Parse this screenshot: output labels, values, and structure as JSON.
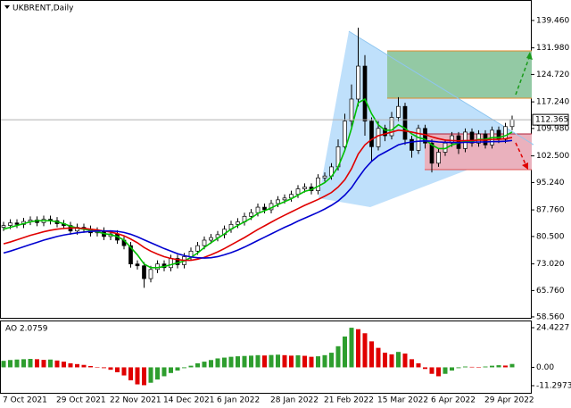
{
  "chart_data": [
    {
      "type": "candlestick",
      "title": "UKBRENT,Daily",
      "categories": [
        null,
        null,
        "7 Oct 2021",
        null,
        null,
        null,
        null,
        null,
        null,
        null,
        "29 Oct 2021",
        null,
        null,
        null,
        null,
        null,
        null,
        null,
        "22 Nov 2021",
        null,
        null,
        null,
        null,
        null,
        null,
        null,
        "14 Dec 2021",
        null,
        null,
        null,
        null,
        null,
        null,
        null,
        "6 Jan 2022",
        null,
        null,
        null,
        null,
        null,
        null,
        null,
        "28 Jan 2022",
        null,
        null,
        null,
        null,
        null,
        null,
        null,
        "21 Feb 2022",
        null,
        null,
        null,
        null,
        null,
        null,
        null,
        "15 Mar 2022",
        null,
        null,
        null,
        null,
        null,
        null,
        null,
        "6 Apr 2022",
        null,
        null,
        null,
        null,
        null,
        null,
        null,
        "29 Apr 2022",
        null,
        null
      ],
      "open": [
        83.0,
        83.5,
        84.2,
        83.8,
        84.6,
        85.0,
        84.3,
        85.2,
        84.8,
        84.0,
        83.5,
        82.0,
        83.0,
        82.5,
        81.5,
        82.0,
        80.5,
        81.2,
        79.5,
        78.0,
        73.0,
        72.5,
        69.0,
        71.5,
        73.0,
        72.0,
        74.5,
        72.8,
        75.0,
        76.5,
        78.0,
        79.5,
        80.2,
        81.0,
        82.5,
        83.8,
        84.5,
        86.0,
        87.0,
        88.5,
        87.8,
        89.5,
        90.5,
        91.0,
        92.0,
        93.5,
        94.0,
        93.0,
        96.5,
        97.0,
        99.5,
        105.0,
        112.0,
        118.0,
        127.0,
        112.0,
        105.0,
        110.0,
        108.0,
        113.0,
        116.0,
        107.0,
        104.0,
        110.0,
        106.0,
        100.5,
        103.5,
        106.0,
        108.0,
        104.5,
        109.0,
        106.0,
        108.5,
        105.5,
        109.5,
        107.0,
        110.5
      ],
      "high": [
        84.5,
        85.2,
        85.2,
        85.6,
        86,
        86,
        86.2,
        86.2,
        85.8,
        85,
        84.5,
        84,
        84,
        83.5,
        83,
        83,
        82.2,
        82.2,
        80.5,
        79,
        74,
        73.5,
        72.5,
        74,
        74,
        75.5,
        75.5,
        76,
        77.5,
        79,
        80.5,
        81.2,
        82,
        83.5,
        84.8,
        85.5,
        87,
        88,
        89.5,
        89.5,
        90.5,
        91.5,
        92,
        93,
        94.5,
        95,
        95,
        97.5,
        98,
        100.5,
        107,
        114,
        122,
        137.5,
        130,
        113,
        112,
        111,
        114.5,
        118.5,
        117,
        108,
        111,
        111,
        107,
        104.5,
        107,
        109,
        109,
        110,
        110,
        109.5,
        109.5,
        110.5,
        110.5,
        111.5,
        113.5
      ],
      "low": [
        82,
        82.5,
        82.8,
        82.8,
        83.6,
        83.3,
        83.3,
        83.8,
        83,
        82.5,
        81,
        81,
        81.5,
        80.5,
        80.5,
        79.5,
        79.5,
        78.5,
        77,
        72,
        71.5,
        66.5,
        68,
        70.5,
        71,
        71,
        71.8,
        71.8,
        74,
        75.5,
        77,
        78.5,
        79.2,
        80,
        81.5,
        82.8,
        83.5,
        85,
        86,
        86.8,
        86.8,
        88.5,
        89.5,
        90,
        91,
        92.5,
        92,
        92,
        95.5,
        96,
        98.5,
        104,
        110,
        116,
        108,
        101,
        104,
        106.5,
        107,
        112,
        105.5,
        102,
        103,
        104.5,
        98,
        99.5,
        102.5,
        105,
        103,
        103.5,
        105,
        105,
        104.5,
        104.5,
        106,
        106,
        109.5
      ],
      "close": [
        83.5,
        84.2,
        83.8,
        84.6,
        85.0,
        84.3,
        85.2,
        84.8,
        84.0,
        83.5,
        82.0,
        83.0,
        82.5,
        81.5,
        82.0,
        80.5,
        81.2,
        79.5,
        78.0,
        73.0,
        72.5,
        69.0,
        71.5,
        73.0,
        72.0,
        74.5,
        72.8,
        75.0,
        76.5,
        78.0,
        79.5,
        80.2,
        81.0,
        82.5,
        83.8,
        84.5,
        86.0,
        87.0,
        88.5,
        87.8,
        89.5,
        90.5,
        91.0,
        92.0,
        93.5,
        94.0,
        93.0,
        96.5,
        97.0,
        99.5,
        105.0,
        112.0,
        118.0,
        127.0,
        112.0,
        105.0,
        110.0,
        108.0,
        113.0,
        116.0,
        107.0,
        104.0,
        110.0,
        106.0,
        100.5,
        103.5,
        106.0,
        108.0,
        104.5,
        109.0,
        106.0,
        108.5,
        105.5,
        109.5,
        107.0,
        110.5,
        112.4
      ],
      "up_color": "#ffffff",
      "down_color": "#000000",
      "series": [
        {
          "color": "#00c000",
          "values": [
            82.5,
            83,
            83.5,
            84,
            84.5,
            84.8,
            84.8,
            84.8,
            84.5,
            84,
            83.3,
            82.8,
            82.5,
            82.2,
            81.8,
            81.3,
            81,
            80.5,
            79.5,
            77.5,
            75.5,
            73,
            72,
            72,
            72.3,
            72.8,
            73.3,
            73.8,
            74.8,
            76,
            77.5,
            78.8,
            80,
            81.2,
            82.5,
            83.5,
            84.5,
            85.5,
            86.8,
            87.5,
            88.3,
            89.2,
            90,
            90.8,
            91.8,
            92.8,
            93.3,
            94.2,
            95.2,
            96.8,
            99.5,
            104,
            110,
            117,
            118,
            114,
            111,
            109.5,
            109.5,
            111,
            110,
            108.5,
            107.5,
            107,
            105.5,
            104.5,
            104.5,
            105.5,
            106,
            106.5,
            106.5,
            107,
            107,
            107.5,
            107.5,
            108,
            109
          ]
        },
        {
          "color": "#e00000",
          "values": [
            78.5,
            79,
            79.6,
            80.2,
            80.8,
            81.3,
            81.8,
            82.2,
            82.5,
            82.7,
            82.8,
            82.8,
            82.7,
            82.5,
            82.3,
            82,
            81.7,
            81.3,
            80.7,
            79.8,
            78.8,
            77.5,
            76.5,
            75.7,
            75,
            74.5,
            74.2,
            74,
            74,
            74.3,
            74.8,
            75.5,
            76.3,
            77.2,
            78.2,
            79.2,
            80.2,
            81.3,
            82.4,
            83.4,
            84.4,
            85.4,
            86.3,
            87.2,
            88.1,
            89,
            89.8,
            90.6,
            91.5,
            92.5,
            94,
            96,
            99,
            103,
            105.5,
            107,
            108,
            108.5,
            109,
            109.5,
            109.3,
            109,
            108.6,
            108.3,
            107.7,
            107.2,
            106.8,
            106.7,
            106.6,
            106.7,
            106.7,
            106.8,
            106.8,
            107,
            107,
            107.2,
            107.5
          ]
        },
        {
          "color": "#0000d0",
          "values": [
            76,
            76.5,
            77.1,
            77.7,
            78.3,
            78.9,
            79.5,
            80,
            80.5,
            80.9,
            81.2,
            81.5,
            81.7,
            81.9,
            82,
            82,
            82,
            81.9,
            81.6,
            81.1,
            80.4,
            79.6,
            78.8,
            78,
            77.2,
            76.5,
            75.8,
            75.3,
            74.9,
            74.7,
            74.6,
            74.7,
            75,
            75.5,
            76.1,
            76.8,
            77.6,
            78.5,
            79.4,
            80.3,
            81.2,
            82.1,
            83,
            83.8,
            84.7,
            85.5,
            86.3,
            87.1,
            88,
            89,
            90.2,
            91.8,
            93.8,
            96.5,
            99,
            101,
            102.5,
            103.5,
            104.5,
            105.5,
            106,
            106.3,
            106.5,
            106.6,
            106.5,
            106.3,
            106.2,
            106.2,
            106.1,
            106.2,
            106.2,
            106.3,
            106.3,
            106.4,
            106.4,
            106.5,
            106.7
          ]
        }
      ],
      "current_price": 112.365,
      "ylim": [
        58.3,
        144.8
      ],
      "yticks": [
        {
          "value": 139.46,
          "label": "139.460"
        },
        {
          "value": 131.98,
          "label": "131.980"
        },
        {
          "value": 124.72,
          "label": "124.720"
        },
        {
          "value": 117.24,
          "label": "117.240"
        },
        {
          "value": 109.98,
          "label": "109.980"
        },
        {
          "value": 102.5,
          "label": "102.500"
        },
        {
          "value": 95.24,
          "label": "95.240"
        },
        {
          "value": 87.76,
          "label": "87.760"
        },
        {
          "value": 80.5,
          "label": "80.500"
        },
        {
          "value": 73.02,
          "label": "73.020"
        },
        {
          "value": 65.76,
          "label": "65.760"
        },
        {
          "value": 58.56,
          "label": "58.560"
        }
      ]
    },
    {
      "type": "bar",
      "title": "AO 2.0759",
      "up_color": "#2e9e2e",
      "down_color": "#e00000",
      "values": [
        4,
        4.5,
        4.8,
        5,
        5.2,
        5,
        4.6,
        4.8,
        4.2,
        3.5,
        2.5,
        2,
        1.5,
        0.8,
        0.2,
        -0.5,
        -1.5,
        -3,
        -5,
        -8,
        -10.5,
        -11,
        -9.5,
        -7.5,
        -5.5,
        -3.5,
        -2,
        -0.5,
        1,
        2.5,
        3.5,
        4.5,
        5.5,
        6,
        6.5,
        6.8,
        7,
        7.2,
        7.5,
        7.3,
        7.6,
        7.8,
        7.5,
        7.2,
        7.4,
        7.1,
        6.5,
        6.8,
        7.5,
        9,
        13,
        19,
        24.4,
        23.5,
        21,
        16,
        12,
        9,
        8,
        9.5,
        8.5,
        5,
        2.5,
        -1,
        -4,
        -5.5,
        -4,
        -2,
        -0.5,
        0.5,
        0.3,
        -0.2,
        0.5,
        1,
        1.3,
        1.1,
        2.0759
      ],
      "ylim": [
        -15.7,
        28.3
      ],
      "yticks": [
        24.4227,
        {
          "value": 0,
          "label": "0.00"
        },
        -11.2973
      ]
    }
  ]
}
